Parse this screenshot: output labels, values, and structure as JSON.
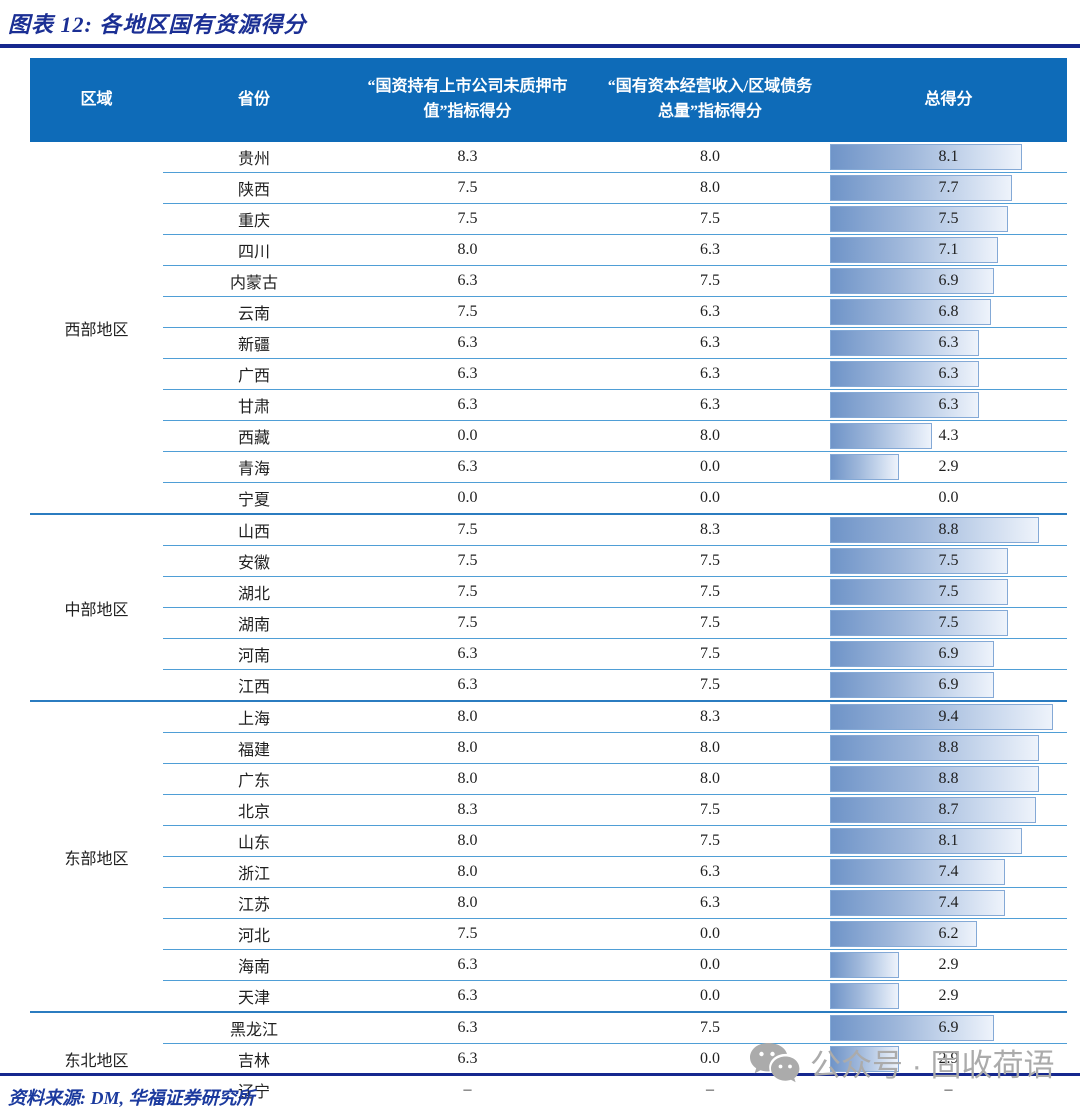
{
  "title": "图表 12: 各地区国有资源得分",
  "source": "资料来源: DM, 华福证券研究所",
  "watermark": {
    "text": "公众号 · 固收荷语",
    "icon": "wechat-icon"
  },
  "colors": {
    "header_bg": "#0e6bb8",
    "header_text": "#ffffff",
    "row_line": "#4f9ed6",
    "section_line": "#2b7cc0",
    "rule_navy": "#16288e",
    "title_text": "#1b2f94",
    "source_text": "#1b3a9e",
    "bar_start": "#6f94c8",
    "bar_end": "#eef3fb",
    "bar_border": "#84a9d6",
    "watermark_gray": "#ababab"
  },
  "chart_data": {
    "type": "table",
    "title": "图表 12: 各地区国有资源得分",
    "bar_column": "总得分",
    "bar_scale_max": 10,
    "headers": [
      "区域",
      "省份",
      "“国资持有上市公司未质押市值”指标得分",
      "“国有资本经营收入/区域债务总量”指标得分",
      "总得分"
    ],
    "sections": [
      {
        "region": "西部地区",
        "rows": [
          {
            "province": "贵州",
            "ind1": "8.3",
            "ind2": "8.0",
            "total": "8.1"
          },
          {
            "province": "陕西",
            "ind1": "7.5",
            "ind2": "8.0",
            "total": "7.7"
          },
          {
            "province": "重庆",
            "ind1": "7.5",
            "ind2": "7.5",
            "total": "7.5"
          },
          {
            "province": "四川",
            "ind1": "8.0",
            "ind2": "6.3",
            "total": "7.1"
          },
          {
            "province": "内蒙古",
            "ind1": "6.3",
            "ind2": "7.5",
            "total": "6.9"
          },
          {
            "province": "云南",
            "ind1": "7.5",
            "ind2": "6.3",
            "total": "6.8"
          },
          {
            "province": "新疆",
            "ind1": "6.3",
            "ind2": "6.3",
            "total": "6.3"
          },
          {
            "province": "广西",
            "ind1": "6.3",
            "ind2": "6.3",
            "total": "6.3"
          },
          {
            "province": "甘肃",
            "ind1": "6.3",
            "ind2": "6.3",
            "total": "6.3"
          },
          {
            "province": "西藏",
            "ind1": "0.0",
            "ind2": "8.0",
            "total": "4.3"
          },
          {
            "province": "青海",
            "ind1": "6.3",
            "ind2": "0.0",
            "total": "2.9"
          },
          {
            "province": "宁夏",
            "ind1": "0.0",
            "ind2": "0.0",
            "total": "0.0"
          }
        ]
      },
      {
        "region": "中部地区",
        "rows": [
          {
            "province": "山西",
            "ind1": "7.5",
            "ind2": "8.3",
            "total": "8.8"
          },
          {
            "province": "安徽",
            "ind1": "7.5",
            "ind2": "7.5",
            "total": "7.5"
          },
          {
            "province": "湖北",
            "ind1": "7.5",
            "ind2": "7.5",
            "total": "7.5"
          },
          {
            "province": "湖南",
            "ind1": "7.5",
            "ind2": "7.5",
            "total": "7.5"
          },
          {
            "province": "河南",
            "ind1": "6.3",
            "ind2": "7.5",
            "total": "6.9"
          },
          {
            "province": "江西",
            "ind1": "6.3",
            "ind2": "7.5",
            "total": "6.9"
          }
        ]
      },
      {
        "region": "东部地区",
        "rows": [
          {
            "province": "上海",
            "ind1": "8.0",
            "ind2": "8.3",
            "total": "9.4"
          },
          {
            "province": "福建",
            "ind1": "8.0",
            "ind2": "8.0",
            "total": "8.8"
          },
          {
            "province": "广东",
            "ind1": "8.0",
            "ind2": "8.0",
            "total": "8.8"
          },
          {
            "province": "北京",
            "ind1": "8.3",
            "ind2": "7.5",
            "total": "8.7"
          },
          {
            "province": "山东",
            "ind1": "8.0",
            "ind2": "7.5",
            "total": "8.1"
          },
          {
            "province": "浙江",
            "ind1": "8.0",
            "ind2": "6.3",
            "total": "7.4"
          },
          {
            "province": "江苏",
            "ind1": "8.0",
            "ind2": "6.3",
            "total": "7.4"
          },
          {
            "province": "河北",
            "ind1": "7.5",
            "ind2": "0.0",
            "total": "6.2"
          },
          {
            "province": "海南",
            "ind1": "6.3",
            "ind2": "0.0",
            "total": "2.9"
          },
          {
            "province": "天津",
            "ind1": "6.3",
            "ind2": "0.0",
            "total": "2.9"
          }
        ]
      },
      {
        "region": "东北地区",
        "rows": [
          {
            "province": "黑龙江",
            "ind1": "6.3",
            "ind2": "7.5",
            "total": "6.9"
          },
          {
            "province": "吉林",
            "ind1": "6.3",
            "ind2": "0.0",
            "total": "2.9"
          },
          {
            "province": "辽宁",
            "ind1": "–",
            "ind2": "–",
            "total": "–"
          }
        ]
      }
    ]
  }
}
